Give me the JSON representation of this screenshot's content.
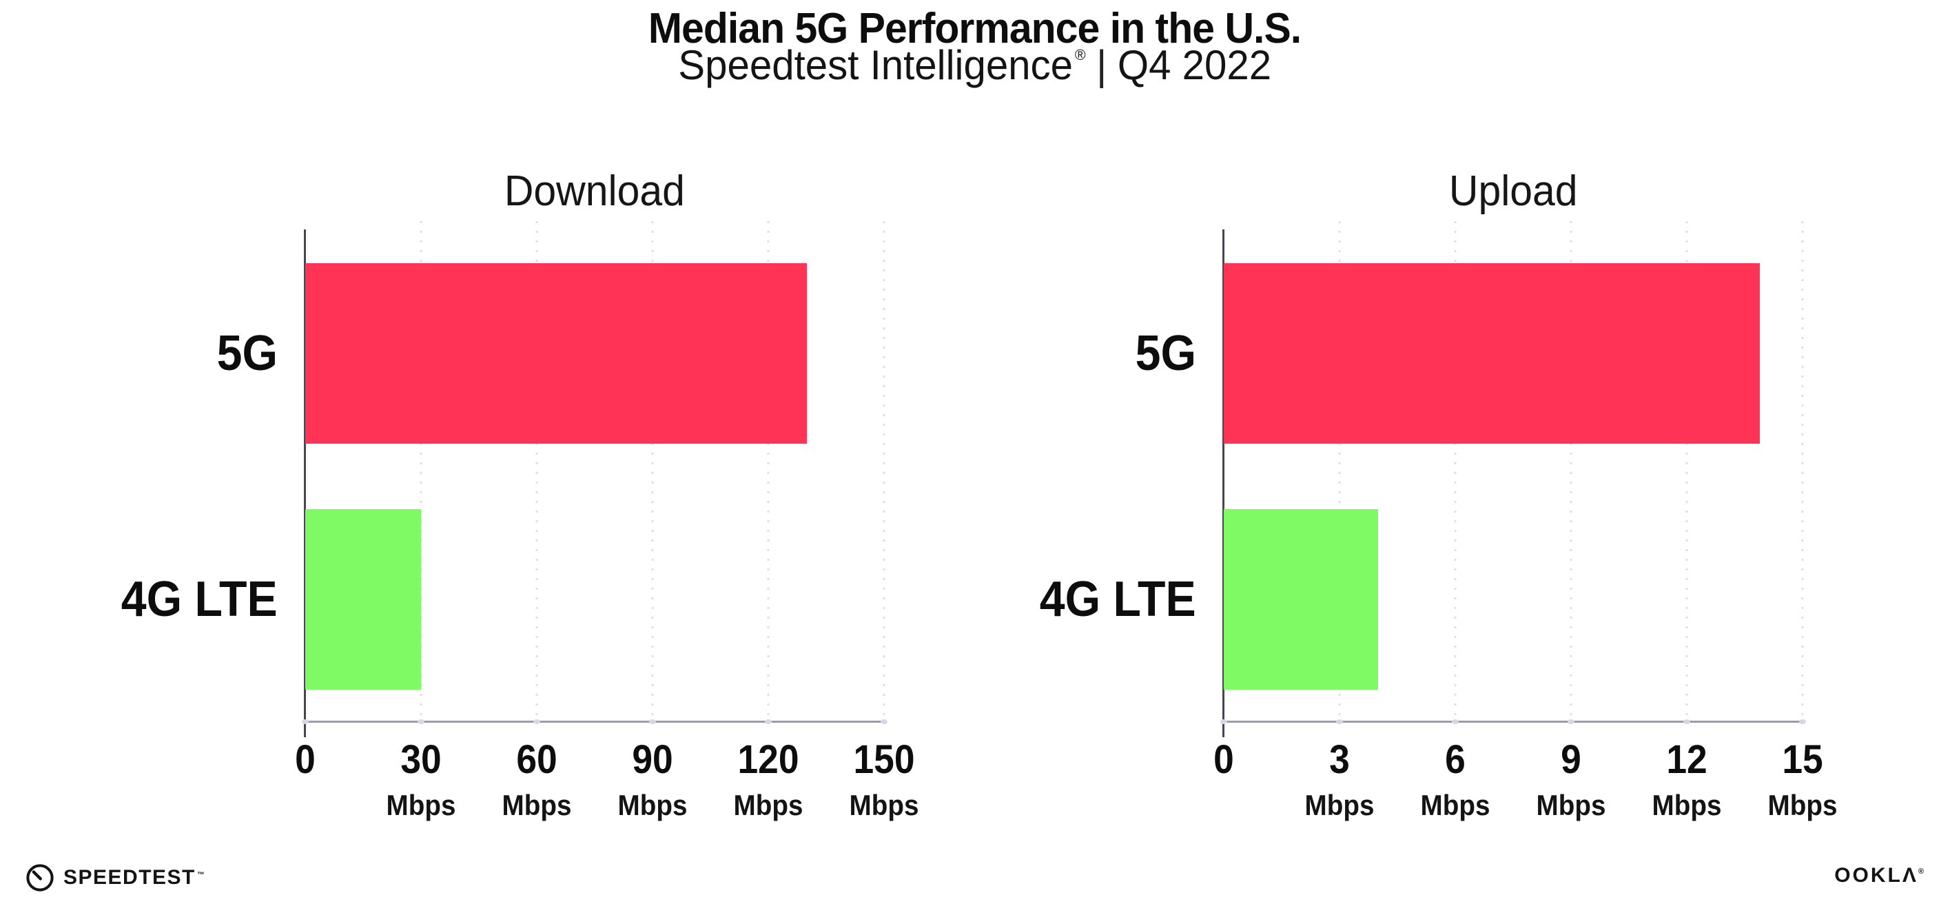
{
  "page": {
    "title": "Median 5G Performance in the U.S.",
    "subtitle": {
      "brand": "Speedtest Intelligence",
      "registered_mark": "®",
      "separator": "|",
      "period": "Q4 2022"
    },
    "background_color": "#ffffff"
  },
  "colors": {
    "bar_5g": "#ff3355",
    "bar_4g_lte": "#7ffa64",
    "gridline_dot": "#dddeea",
    "x_axis_line": "#9b9ba3",
    "y_axis_line": "#4a4450",
    "text": "#0d0d0d"
  },
  "chart_data": [
    {
      "type": "bar",
      "orientation": "horizontal",
      "title": "Download",
      "categories": [
        "5G",
        "4G LTE"
      ],
      "values": [
        130,
        30
      ],
      "unit": "Mbps",
      "xlim": [
        0,
        150
      ],
      "xticks": [
        0,
        30,
        60,
        90,
        120,
        150
      ],
      "tick_unit": "Mbps",
      "grid": "dotted-vertical",
      "legend": "none",
      "bar_colors": [
        "#ff3355",
        "#7ffa64"
      ]
    },
    {
      "type": "bar",
      "orientation": "horizontal",
      "title": "Upload",
      "categories": [
        "5G",
        "4G LTE"
      ],
      "values": [
        13.9,
        4
      ],
      "unit": "Mbps",
      "xlim": [
        0,
        15
      ],
      "xticks": [
        0,
        3,
        6,
        9,
        12,
        15
      ],
      "tick_unit": "Mbps",
      "grid": "dotted-vertical",
      "legend": "none",
      "bar_colors": [
        "#ff3355",
        "#7ffa64"
      ]
    }
  ],
  "footer": {
    "speedtest_wordmark": "SPEEDTEST",
    "speedtest_trademark": "™",
    "speedtest_icon": "gauge-icon",
    "ookla_wordmark": "OOKLΛ",
    "ookla_registered": "®"
  }
}
